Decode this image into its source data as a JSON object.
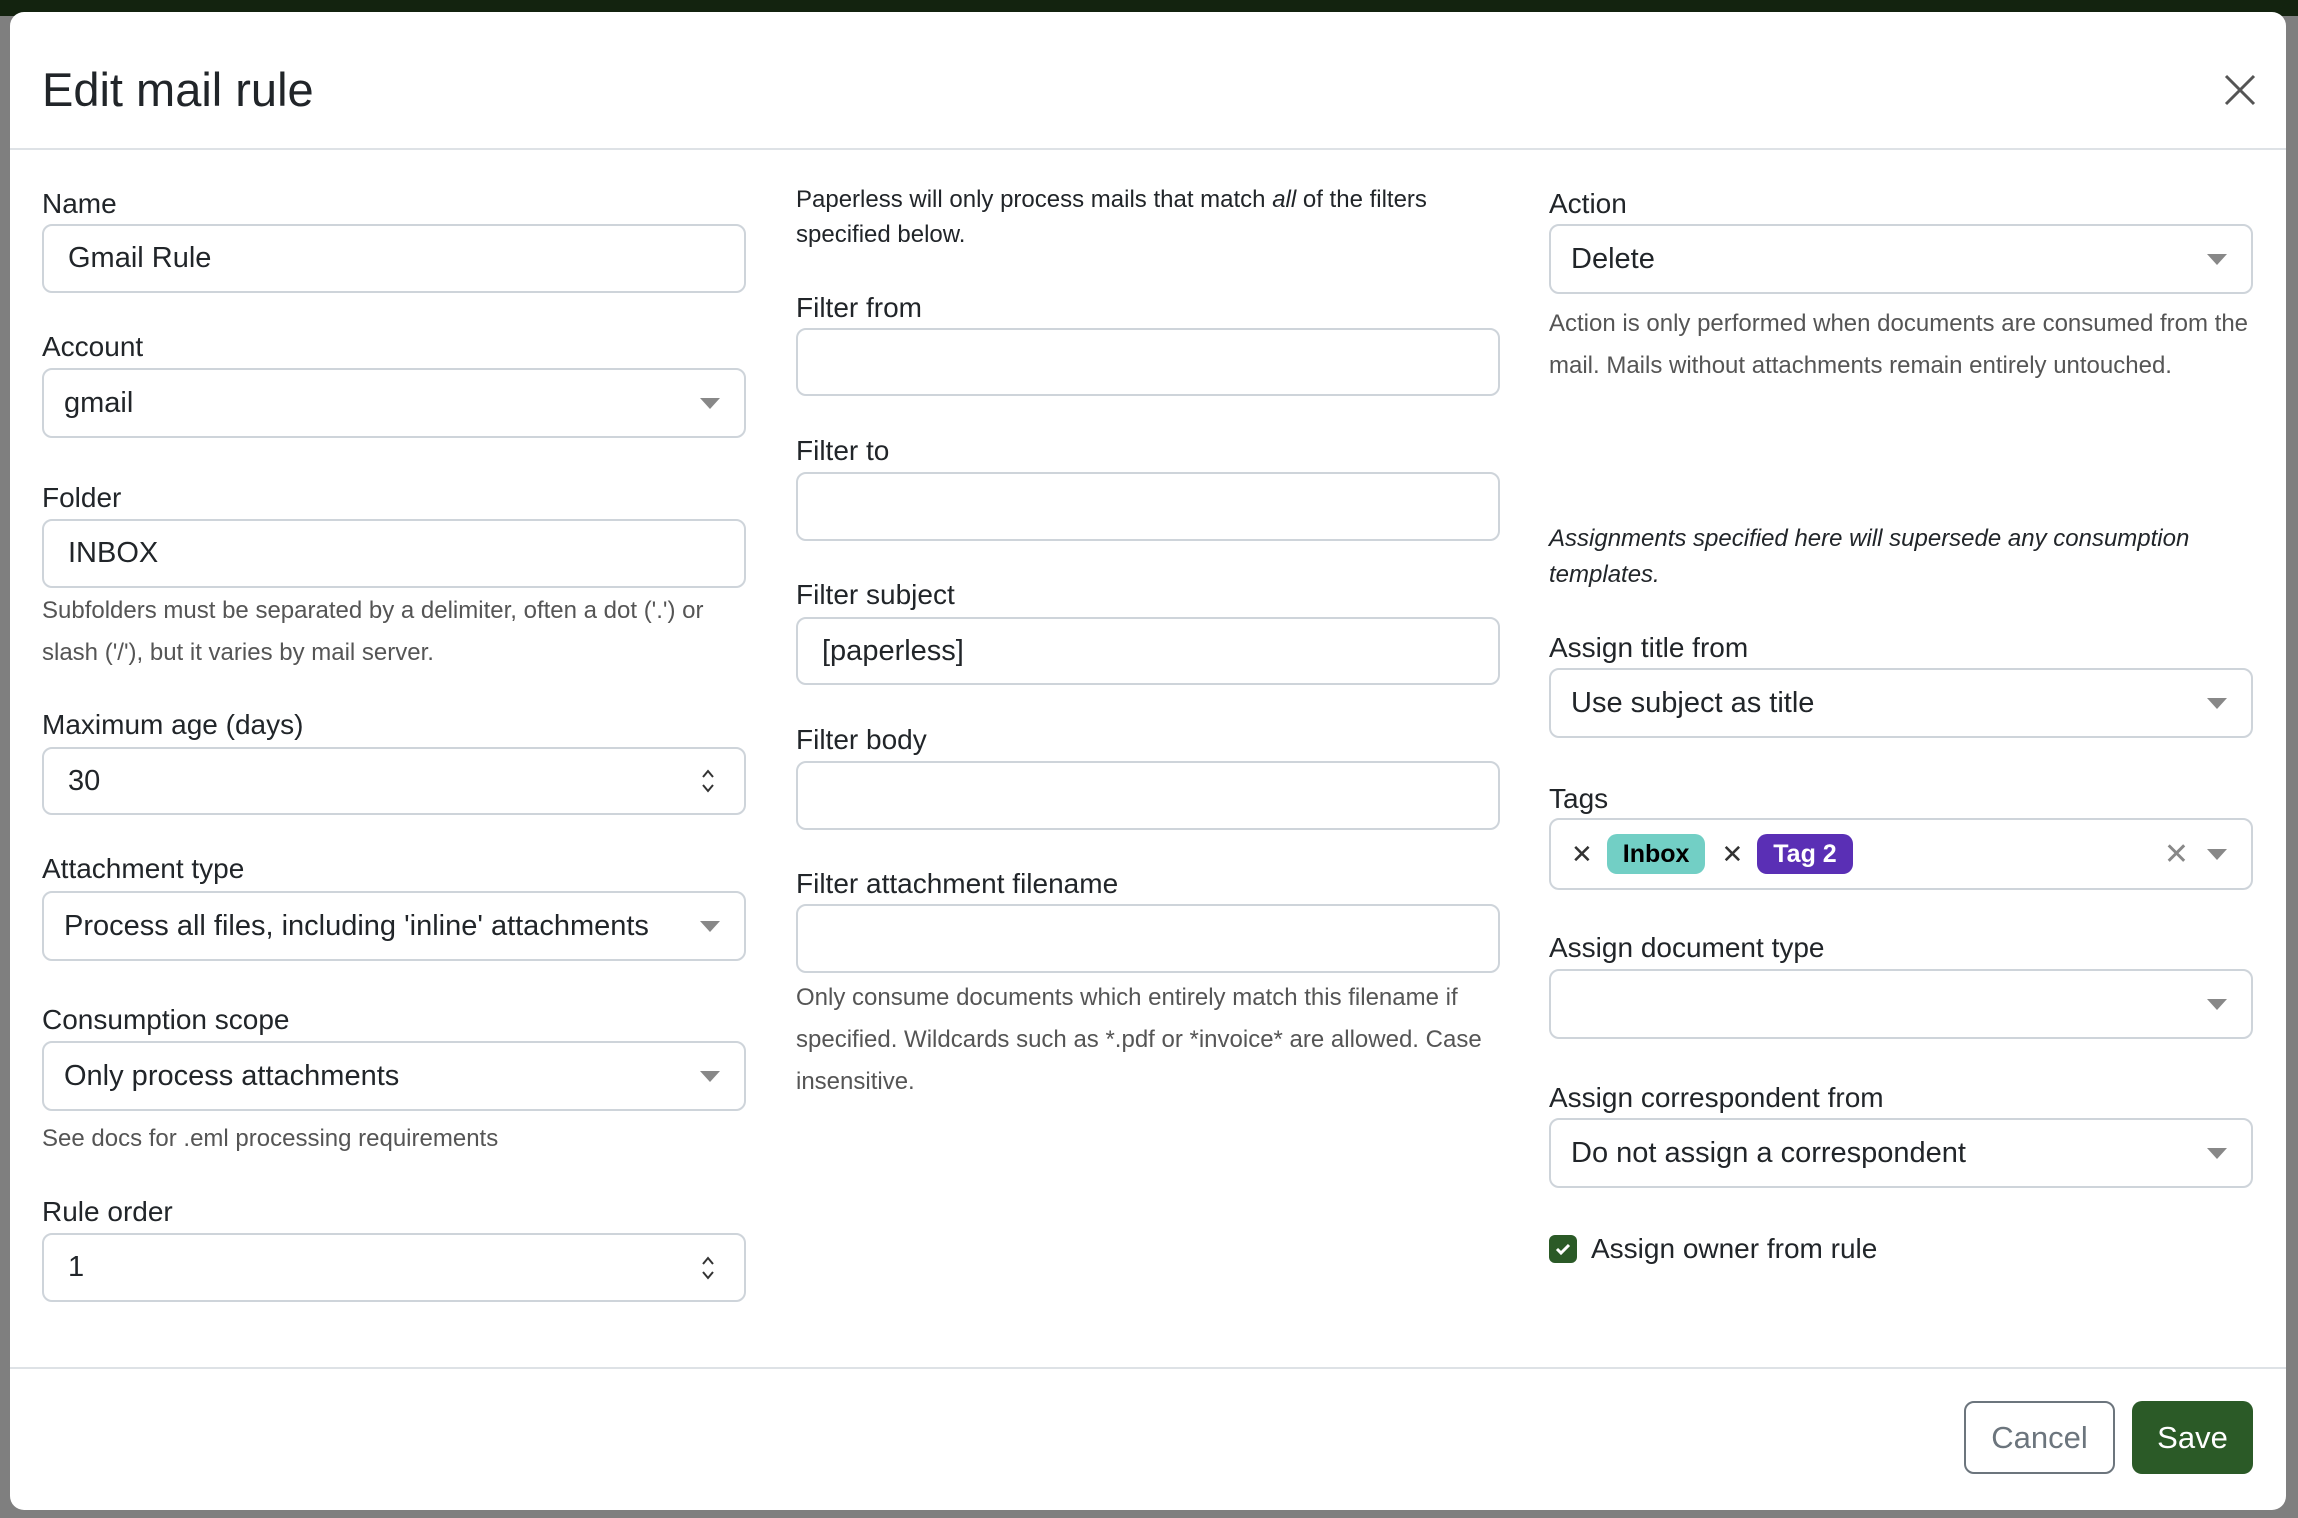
{
  "modal": {
    "title": "Edit mail rule",
    "close_icon": "close-icon"
  },
  "col1": {
    "name": {
      "label": "Name",
      "value": "Gmail Rule"
    },
    "account": {
      "label": "Account",
      "value": "gmail"
    },
    "folder": {
      "label": "Folder",
      "value": "INBOX",
      "help": "Subfolders must be separated by a delimiter, often a dot ('.') or slash ('/'), but it varies by mail server."
    },
    "maximum_age": {
      "label": "Maximum age (days)",
      "value": "30"
    },
    "attachment_type": {
      "label": "Attachment type",
      "value": "Process all files, including 'inline' attachments"
    },
    "consumption_scope": {
      "label": "Consumption scope",
      "value": "Only process attachments",
      "help": "See docs for .eml processing requirements"
    },
    "rule_order": {
      "label": "Rule order",
      "value": "1"
    }
  },
  "col2": {
    "intro_before": "Paperless will only process mails that match ",
    "intro_em": "all",
    "intro_after": " of the filters specified below.",
    "filter_from": {
      "label": "Filter from",
      "value": ""
    },
    "filter_to": {
      "label": "Filter to",
      "value": ""
    },
    "filter_subject": {
      "label": "Filter subject",
      "value": "[paperless]"
    },
    "filter_body": {
      "label": "Filter body",
      "value": ""
    },
    "filter_attachment_filename": {
      "label": "Filter attachment filename",
      "value": "",
      "help": "Only consume documents which entirely match this filename if specified. Wildcards such as *.pdf or *invoice* are allowed. Case insensitive."
    }
  },
  "col3": {
    "action": {
      "label": "Action",
      "value": "Delete",
      "help": "Action is only performed when documents are consumed from the mail. Mails without attachments remain entirely untouched."
    },
    "assignments_note": "Assignments specified here will supersede any consumption templates.",
    "assign_title_from": {
      "label": "Assign title from",
      "value": "Use subject as title"
    },
    "tags": {
      "label": "Tags",
      "items": [
        {
          "name": "Inbox",
          "bg": "#72cfc5",
          "fg": "#000000"
        },
        {
          "name": "Tag 2",
          "bg": "#5a2fb5",
          "fg": "#ffffff"
        }
      ]
    },
    "assign_document_type": {
      "label": "Assign document type",
      "value": ""
    },
    "assign_correspondent_from": {
      "label": "Assign correspondent from",
      "value": "Do not assign a correspondent"
    },
    "assign_owner": {
      "label": "Assign owner from rule",
      "checked": true
    }
  },
  "footer": {
    "cancel": "Cancel",
    "save": "Save"
  },
  "colors": {
    "primary": "#2b5a27",
    "topbar": "#13230f"
  }
}
